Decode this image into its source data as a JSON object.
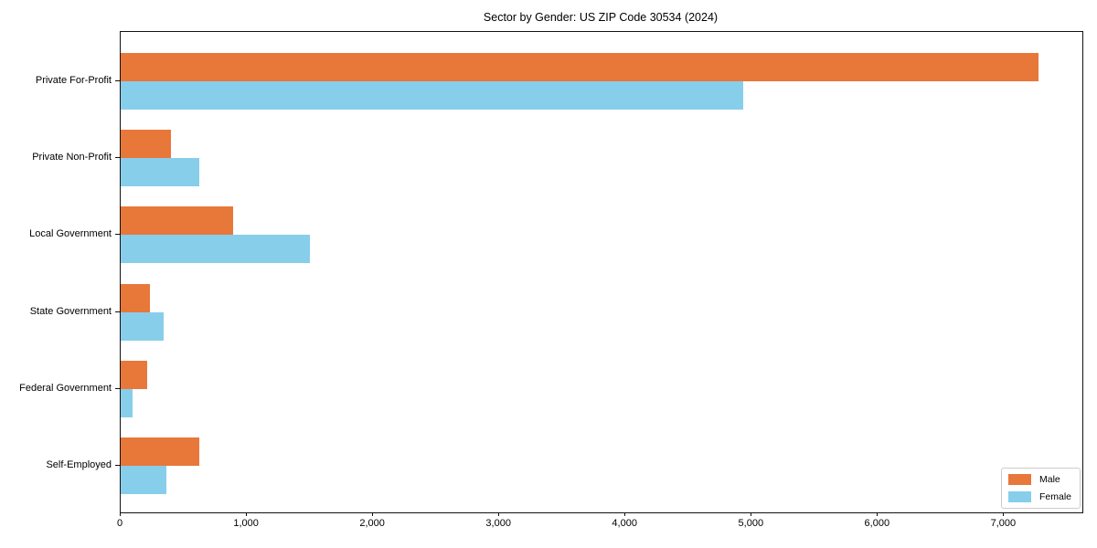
{
  "chart_data": {
    "type": "bar",
    "orientation": "horizontal",
    "title": "Sector by Gender: US ZIP Code 30534 (2024)",
    "xlabel": "",
    "ylabel": "",
    "categories": [
      "Private For-Profit",
      "Private Non-Profit",
      "Local Government",
      "State Government",
      "Federal Government",
      "Self-Employed"
    ],
    "series": [
      {
        "name": "Male",
        "color": "#e8773a",
        "values": [
          7270,
          400,
          890,
          235,
          210,
          620
        ]
      },
      {
        "name": "Female",
        "color": "#87ceeb",
        "values": [
          4930,
          620,
          1500,
          340,
          95,
          360
        ]
      }
    ],
    "xlim": [
      0,
      7620
    ],
    "xticks": [
      0,
      1000,
      2000,
      3000,
      4000,
      5000,
      6000,
      7000
    ],
    "xtick_labels": [
      "0",
      "1,000",
      "2,000",
      "3,000",
      "4,000",
      "5,000",
      "6,000",
      "7,000"
    ],
    "grid": false,
    "legend": {
      "position": "lower right",
      "entries": [
        "Male",
        "Female"
      ]
    },
    "axes": {
      "spine_color": "#111111",
      "tick_color": "#111111",
      "text_color": "#000000",
      "background": "#ffffff"
    }
  }
}
